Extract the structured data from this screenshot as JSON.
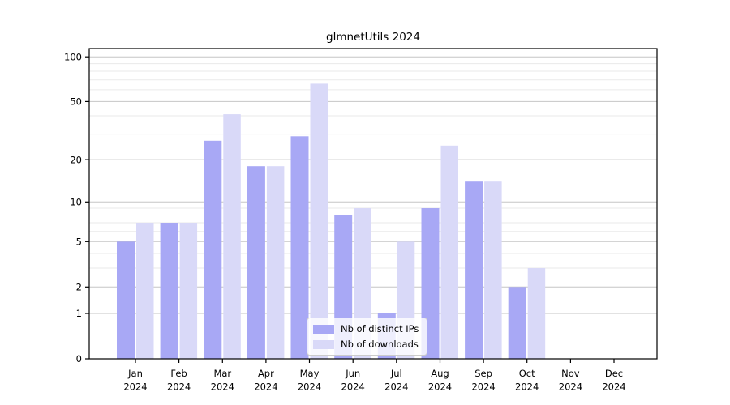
{
  "chart_data": {
    "type": "bar",
    "title": "glmnetUtils 2024",
    "x_year": "2024",
    "categories": [
      "Jan",
      "Feb",
      "Mar",
      "Apr",
      "May",
      "Jun",
      "Jul",
      "Aug",
      "Sep",
      "Oct",
      "Nov",
      "Dec"
    ],
    "series": [
      {
        "name": "Nb of distinct IPs",
        "color": "#a8a8f5",
        "values": [
          5,
          7,
          27,
          18,
          29,
          8,
          1,
          9,
          14,
          2,
          0,
          0
        ]
      },
      {
        "name": "Nb of downloads",
        "color": "#d9d9f8",
        "values": [
          7,
          7,
          41,
          18,
          66,
          9,
          5,
          25,
          14,
          3,
          0,
          0
        ]
      }
    ],
    "y_axis": {
      "scale": "log1p",
      "major_ticks": [
        0,
        1,
        2,
        5,
        10,
        20,
        50,
        100
      ],
      "minor_gridlines": [
        3,
        4,
        6,
        7,
        8,
        9,
        30,
        40,
        60,
        70,
        80,
        90
      ],
      "ylim": [
        0,
        113
      ]
    },
    "grid": true,
    "legend_position": "inside-bottom-center",
    "colors": {
      "major_grid": "#c6c6c6",
      "minor_grid": "#eaeaea",
      "axis": "#000000",
      "background": "#ffffff"
    }
  }
}
